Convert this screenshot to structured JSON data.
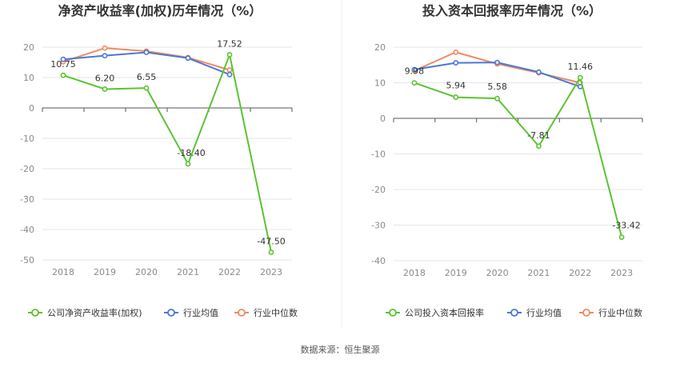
{
  "chart_data": [
    {
      "type": "line",
      "title": "净资产收益率(加权)历年情况（%）",
      "xlabel": "",
      "ylabel": "",
      "categories": [
        "2018",
        "2019",
        "2020",
        "2021",
        "2022",
        "2023"
      ],
      "ylim": [
        -50,
        20
      ],
      "yticks": [
        20,
        10,
        0,
        -10,
        -20,
        -30,
        -40,
        -50
      ],
      "grid": true,
      "legend_position": "bottom",
      "series": [
        {
          "name": "公司净资产收益率(加权)",
          "color": "#5ac431",
          "values": [
            10.75,
            6.2,
            6.55,
            -18.4,
            17.52,
            -47.5
          ],
          "labels": [
            "10.75",
            "6.20",
            "6.55",
            "-18.40",
            "17.52",
            "-47.50"
          ]
        },
        {
          "name": "行业均值",
          "color": "#4a78d6",
          "values": [
            16.0,
            17.2,
            18.3,
            16.4,
            11.0,
            null
          ]
        },
        {
          "name": "行业中位数",
          "color": "#ee8a5e",
          "values": [
            15.2,
            19.7,
            18.7,
            16.6,
            12.5,
            null
          ]
        }
      ]
    },
    {
      "type": "line",
      "title": "投入资本回报率历年情况（%）",
      "xlabel": "",
      "ylabel": "",
      "categories": [
        "2018",
        "2019",
        "2020",
        "2021",
        "2022",
        "2023"
      ],
      "ylim": [
        -40,
        20
      ],
      "yticks": [
        20,
        10,
        0,
        -10,
        -20,
        -30,
        -40
      ],
      "grid": true,
      "legend_position": "bottom",
      "series": [
        {
          "name": "公司投入资本回报率",
          "color": "#5ac431",
          "values": [
            9.98,
            5.94,
            5.58,
            -7.81,
            11.46,
            -33.42
          ],
          "labels": [
            "9.98",
            "5.94",
            "5.58",
            "-7.81",
            "11.46",
            "-33.42"
          ]
        },
        {
          "name": "行业均值",
          "color": "#4a78d6",
          "values": [
            13.7,
            15.6,
            15.7,
            13.0,
            8.9,
            null
          ]
        },
        {
          "name": "行业中位数",
          "color": "#ee8a5e",
          "values": [
            13.4,
            18.6,
            15.3,
            12.8,
            10.0,
            null
          ]
        }
      ]
    }
  ],
  "footer": {
    "source": "数据来源：恒生聚源"
  }
}
